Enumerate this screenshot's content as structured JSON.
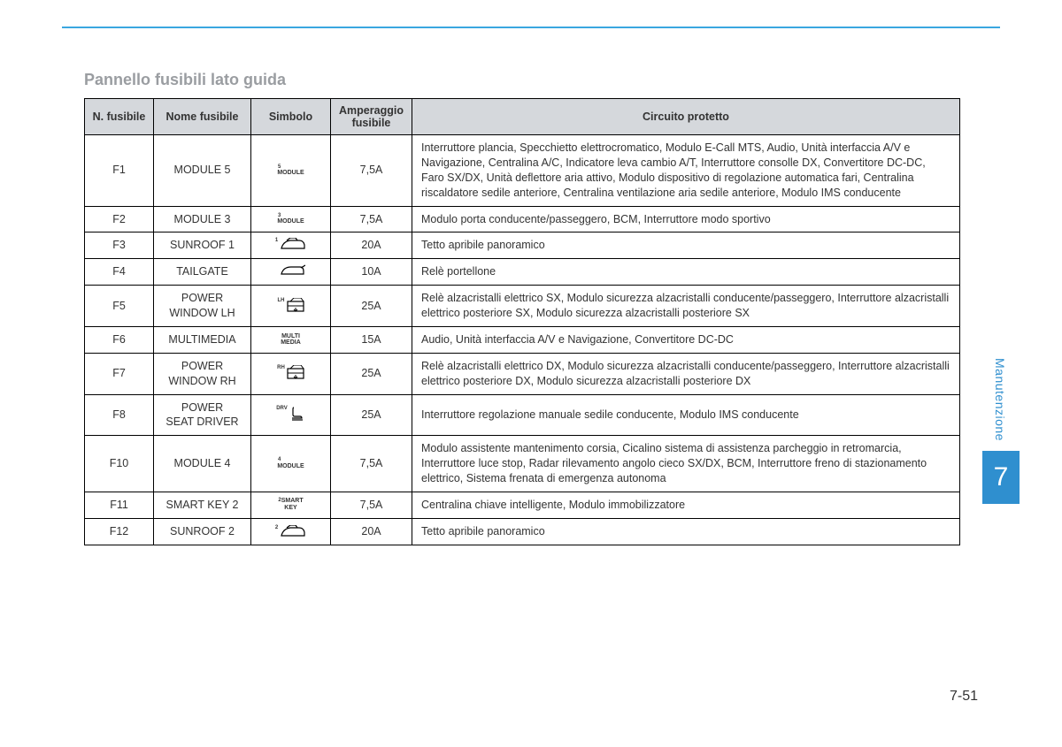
{
  "title": "Pannello fusibili lato guida",
  "headers": {
    "col1": "N. fusibile",
    "col2": "Nome fusibile",
    "col3": "Simbolo",
    "col4": "Amperaggio fusibile",
    "col5": "Circuito protetto"
  },
  "rows": [
    {
      "num": "F1",
      "name": "MODULE 5",
      "symbol_sup": "5",
      "symbol_text": "MODULE",
      "symbol_type": "text",
      "amp": "7,5A",
      "desc": "Interruttore plancia, Specchietto elettrocromatico, Modulo E-Call MTS, Audio, Unità interfaccia A/V e Navigazione, Centralina A/C, Indicatore leva cambio A/T, Interruttore consolle DX, Convertitore DC-DC, Faro SX/DX, Unità deflettore aria attivo, Modulo dispositivo di regolazione automatica fari, Centralina riscaldatore sedile anteriore, Centralina ventilazione aria sedile anteriore, Modulo IMS conducente"
    },
    {
      "num": "F2",
      "name": "MODULE 3",
      "symbol_sup": "3",
      "symbol_text": "MODULE",
      "symbol_type": "text",
      "amp": "7,5A",
      "desc": "Modulo porta conducente/passeggero, BCM, Interruttore modo sportivo"
    },
    {
      "num": "F3",
      "name": "SUNROOF 1",
      "symbol_sup": "1",
      "symbol_text": "",
      "symbol_type": "sunroof",
      "amp": "20A",
      "desc": "Tetto apribile panoramico"
    },
    {
      "num": "F4",
      "name": "TAILGATE",
      "symbol_sup": "",
      "symbol_text": "",
      "symbol_type": "tailgate",
      "amp": "10A",
      "desc": "Relè portellone"
    },
    {
      "num": "F5",
      "name": "POWER WINDOW LH",
      "symbol_sup": "LH",
      "symbol_text": "",
      "symbol_type": "window",
      "amp": "25A",
      "desc": "Relè alzacristalli elettrico SX, Modulo sicurezza alzacristalli conducente/passeggero, Interruttore alzacristalli elettrico posteriore SX, Modulo sicurezza alzacristalli posteriore SX"
    },
    {
      "num": "F6",
      "name": "MULTIMEDIA",
      "symbol_sup": "",
      "symbol_text": "MULTI MEDIA",
      "symbol_type": "text2",
      "amp": "15A",
      "desc": "Audio, Unità interfaccia A/V e Navigazione, Convertitore DC-DC"
    },
    {
      "num": "F7",
      "name": "POWER WINDOW RH",
      "symbol_sup": "RH",
      "symbol_text": "",
      "symbol_type": "window",
      "amp": "25A",
      "desc": "Relè alzacristalli elettrico DX, Modulo sicurezza alzacristalli conducente/passeggero, Interruttore alzacristalli elettrico posteriore DX, Modulo sicurezza alzacristalli posteriore DX"
    },
    {
      "num": "F8",
      "name": "POWER SEAT DRIVER",
      "symbol_sup": "DRV",
      "symbol_text": "",
      "symbol_type": "seat",
      "amp": "25A",
      "desc": "Interruttore regolazione manuale sedile conducente, Modulo IMS conducente"
    },
    {
      "num": "F10",
      "name": "MODULE 4",
      "symbol_sup": "4",
      "symbol_text": "MODULE",
      "symbol_type": "text",
      "amp": "7,5A",
      "desc": "Modulo assistente mantenimento corsia, Cicalino sistema di assistenza parcheggio in retromarcia, Interruttore luce stop, Radar rilevamento angolo cieco SX/DX, BCM, Interruttore freno di stazionamento elettrico, Sistema frenata di emergenza autonoma"
    },
    {
      "num": "F11",
      "name": "SMART KEY 2",
      "symbol_sup": "2",
      "symbol_text": "SMART KEY",
      "symbol_type": "text2b",
      "amp": "7,5A",
      "desc": "Centralina chiave intelligente, Modulo immobilizzatore"
    },
    {
      "num": "F12",
      "name": "SUNROOF 2",
      "symbol_sup": "2",
      "symbol_text": "",
      "symbol_type": "sunroof",
      "amp": "20A",
      "desc": "Tetto apribile panoramico"
    }
  ],
  "side": {
    "label": "Manutenzione",
    "chapter": "7"
  },
  "page_number": "7-51",
  "styling": {
    "header_bg": "#d5d8dc",
    "border_color": "#000000",
    "title_color": "#9a9da1",
    "accent_color": "#2f8fcf",
    "top_line_color": "#3aa7e0",
    "body_font_size": 12.5,
    "title_font_size": 18
  }
}
